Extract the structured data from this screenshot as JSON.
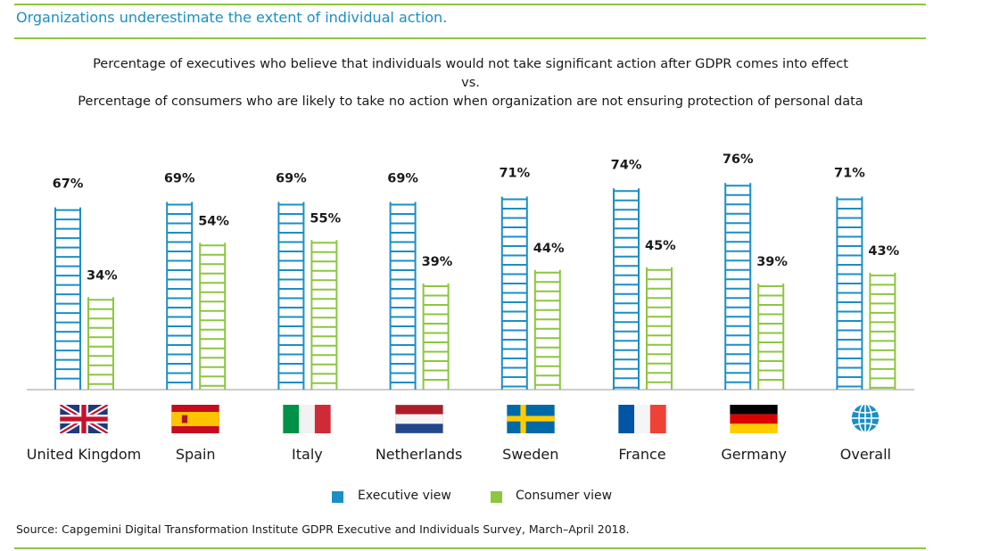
{
  "header": {
    "text": "Organizations underestimate the extent of individual action."
  },
  "subtitle": {
    "line1": "Percentage of executives who believe that individuals would not take significant action after GDPR comes into effect",
    "line2": "vs.",
    "line3": "Percentage of consumers who are likely to take no action when organization are not ensuring protection of personal data"
  },
  "colors": {
    "executive": "#1b8fc4",
    "consumer": "#8dc63f",
    "rule": "#8dc63f",
    "header": "#1b8fc4"
  },
  "chart_data": {
    "type": "bar",
    "categories": [
      "United Kingdom",
      "Spain",
      "Italy",
      "Netherlands",
      "Sweden",
      "France",
      "Germany",
      "Overall"
    ],
    "series": [
      {
        "name": "Executive view",
        "values": [
          67,
          69,
          69,
          69,
          71,
          74,
          76,
          71
        ],
        "labels": [
          "67%",
          "69%",
          "69%",
          "69%",
          "71%",
          "74%",
          "76%",
          "71%"
        ]
      },
      {
        "name": "Consumer view",
        "values": [
          34,
          54,
          55,
          39,
          44,
          45,
          39,
          43
        ],
        "labels": [
          "34%",
          "54%",
          "55%",
          "39%",
          "44%",
          "45%",
          "39%",
          "43%"
        ]
      }
    ],
    "icons": [
      "uk-flag-icon",
      "spain-flag-icon",
      "italy-flag-icon",
      "netherlands-flag-icon",
      "sweden-flag-icon",
      "france-flag-icon",
      "germany-flag-icon",
      "globe-icon"
    ],
    "legend": {
      "position": "bottom",
      "items": [
        "Executive view",
        "Consumer view"
      ]
    },
    "grid": false
  },
  "source": "Source: Capgemini Digital Transformation Institute GDPR Executive and Individuals Survey, March–April 2018."
}
